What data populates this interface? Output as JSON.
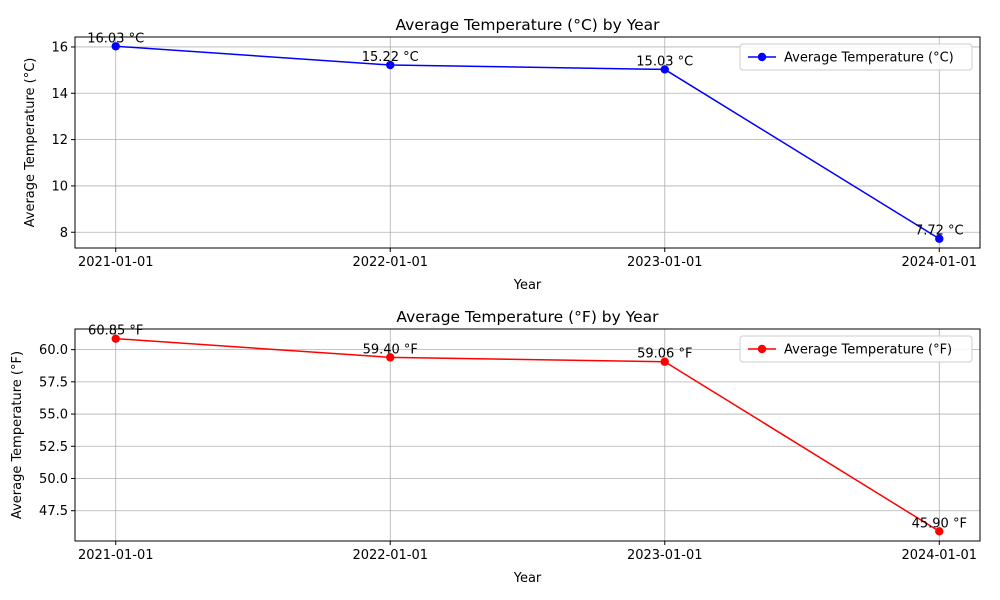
{
  "chart_data": [
    {
      "type": "line",
      "title": "Average Temperature (°C) by Year",
      "xlabel": "Year",
      "ylabel": "Average Temperature (°C)",
      "x": [
        "2021-01-01",
        "2022-01-01",
        "2023-01-01",
        "2024-01-01"
      ],
      "series": [
        {
          "name": "Average Temperature (°C)",
          "values": [
            16.03,
            15.22,
            15.03,
            7.72
          ],
          "labels": [
            "16.03 °C",
            "15.22 °C",
            "15.03 °C",
            "7.72 °C"
          ],
          "color": "#0000ff",
          "marker": "circle"
        }
      ],
      "ylim": [
        7.32,
        16.43
      ],
      "yticks": [
        8,
        10,
        12,
        14,
        16
      ],
      "ytick_labels": [
        "8",
        "10",
        "12",
        "14",
        "16"
      ],
      "grid": true,
      "legend": "top-right"
    },
    {
      "type": "line",
      "title": "Average Temperature (°F) by Year",
      "xlabel": "Year",
      "ylabel": "Average Temperature (°F)",
      "x": [
        "2021-01-01",
        "2022-01-01",
        "2023-01-01",
        "2024-01-01"
      ],
      "series": [
        {
          "name": "Average Temperature (°F)",
          "values": [
            60.85,
            59.4,
            59.06,
            45.9
          ],
          "labels": [
            "60.85 °F",
            "59.40 °F",
            "59.06 °F",
            "45.90 °F"
          ],
          "color": "#ff0000",
          "marker": "circle"
        }
      ],
      "ylim": [
        45.15,
        61.6
      ],
      "yticks": [
        47.5,
        50.0,
        52.5,
        55.0,
        57.5,
        60.0
      ],
      "ytick_labels": [
        "47.5",
        "50.0",
        "52.5",
        "55.0",
        "57.5",
        "60.0"
      ],
      "grid": true,
      "legend": "top-right"
    }
  ]
}
